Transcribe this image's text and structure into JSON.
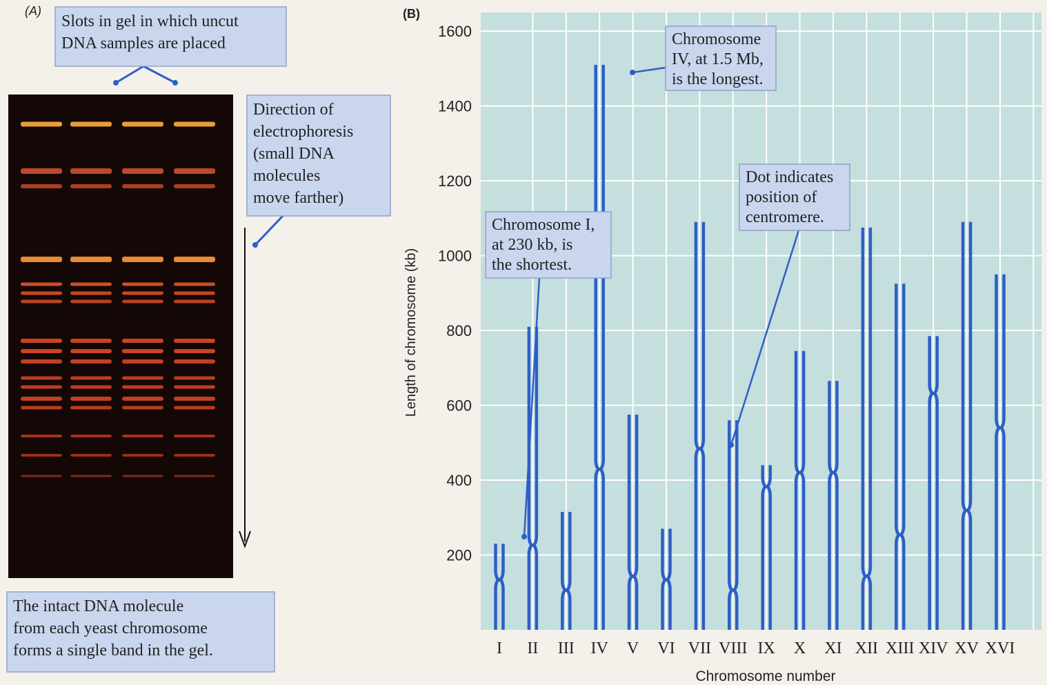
{
  "panel_a": {
    "label": "(A)",
    "annotations": [
      [
        "Slots in gel in which uncut",
        "DNA samples are placed"
      ],
      [
        "Direction of",
        "electrophoresis",
        "(small DNA",
        "molecules",
        "move farther)"
      ],
      [
        "The intact DNA molecule",
        "from each yeast chromosome",
        "forms a single band in the gel."
      ]
    ]
  },
  "chart_data": {
    "type": "chromosome",
    "label": "(B)",
    "xlabel": "Chromosome number",
    "ylabel": "Length of chromosome (kb)",
    "categories": [
      "I",
      "II",
      "III",
      "IV",
      "V",
      "VI",
      "VII",
      "VIII",
      "IX",
      "X",
      "XI",
      "XII",
      "XIII",
      "XIV",
      "XV",
      "XVI"
    ],
    "values": [
      230,
      810,
      315,
      1510,
      575,
      270,
      1090,
      560,
      440,
      745,
      665,
      1075,
      925,
      785,
      1090,
      950
    ],
    "centromeres": [
      134,
      226,
      106,
      429,
      143,
      134,
      484,
      106,
      383,
      420,
      420,
      143,
      254,
      632,
      319,
      540
    ],
    "color": "#2c5fc6",
    "ylim": [
      0,
      1650
    ],
    "yticks": [
      200,
      400,
      600,
      800,
      1000,
      1200,
      1400,
      1600
    ],
    "grid": true,
    "annotations": [
      [
        "Chromosome",
        "IV, at 1.5 Mb,",
        "is the longest."
      ],
      [
        "Chromosome I,",
        "at 230 kb, is",
        "the shortest."
      ],
      [
        "Dot indicates",
        "position of",
        "centromere."
      ]
    ]
  }
}
